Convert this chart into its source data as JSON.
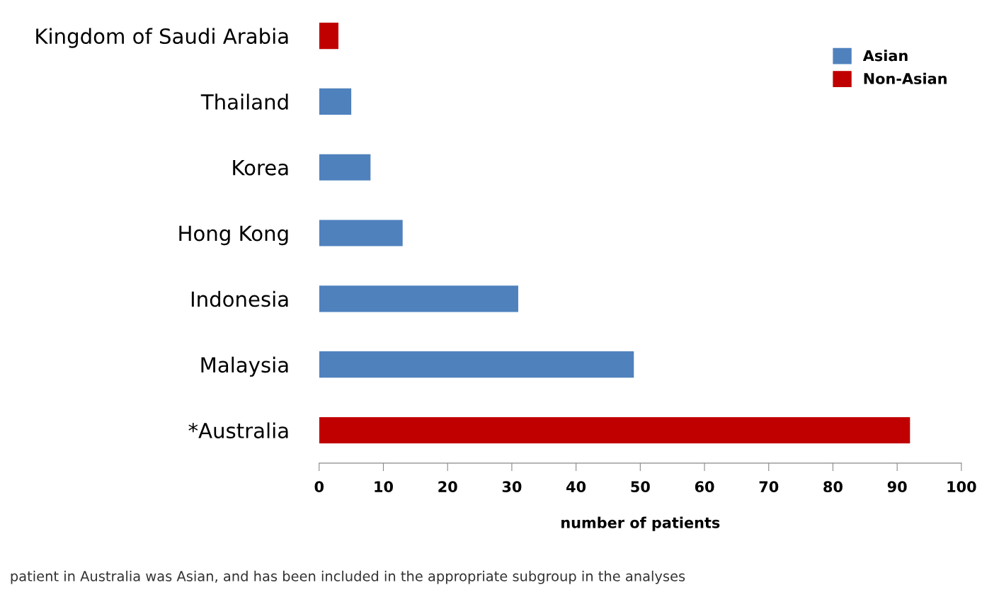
{
  "chart_data": {
    "type": "bar",
    "orientation": "horizontal",
    "categories": [
      "Kingdom of Saudi Arabia",
      "Thailand",
      "Korea",
      "Hong Kong",
      "Indonesia",
      "Malaysia",
      "*Australia"
    ],
    "series": [
      {
        "name": "Asian",
        "color": "#4f81bd",
        "values": [
          null,
          5,
          8,
          13,
          31,
          49,
          null
        ]
      },
      {
        "name": "Non-Asian",
        "color": "#c00000",
        "values": [
          3,
          null,
          null,
          null,
          null,
          null,
          92
        ]
      }
    ],
    "xlabel": "number of patients",
    "xlim": [
      0,
      100
    ],
    "xticks": [
      0,
      10,
      20,
      30,
      40,
      50,
      60,
      70,
      80,
      90,
      100
    ],
    "grid": false,
    "legend": "top right",
    "annotations": [
      "patient in Australia was Asian, and has been included in the appropriate subgroup in the analyses"
    ]
  }
}
